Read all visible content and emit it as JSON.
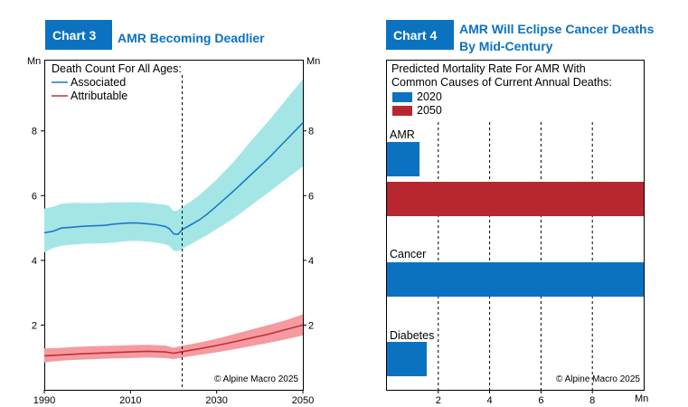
{
  "charts": [
    {
      "tag": "Chart 3",
      "title": "AMR Becoming Deadlier",
      "unit_left": "Mn",
      "unit_right": "Mn",
      "legend_title": "Death Count For All Ages:",
      "copyright": "© Alpine Macro 2025"
    },
    {
      "tag": "Chart 4",
      "title_line1": "AMR Will Eclipse Cancer Deaths",
      "title_line2": "By Mid-Century",
      "legend_title_line1": "Predicted Mortality Rate For AMR With",
      "legend_title_line2": "Common Causes of Current Annual Deaths:",
      "unit": "Mn",
      "copyright": "© Alpine Macro 2025"
    }
  ],
  "chart_data": [
    {
      "type": "line",
      "title": "AMR Becoming Deadlier",
      "xlabel": "",
      "ylabel": "Mn",
      "xlim": [
        1990,
        2050
      ],
      "ylim": [
        0,
        10.2
      ],
      "x_ticks": [
        1990,
        2010,
        2030,
        2050
      ],
      "y_ticks": [
        2,
        4,
        6,
        8
      ],
      "vline_x": 2022,
      "legend_position": "top-left",
      "colors": {
        "associated": "#1f77c8",
        "associated_band": "#a4e6e6",
        "attributable": "#c0303a",
        "attributable_band": "#f59aa0"
      },
      "series": [
        {
          "name": "Associated",
          "x": [
            1990,
            1992,
            1994,
            1996,
            1998,
            2000,
            2002,
            2004,
            2006,
            2008,
            2010,
            2012,
            2014,
            2016,
            2018,
            2019,
            2020,
            2021,
            2022,
            2024,
            2026,
            2028,
            2030,
            2034,
            2038,
            2042,
            2046,
            2050
          ],
          "values": [
            4.85,
            4.9,
            5.0,
            5.02,
            5.04,
            5.06,
            5.07,
            5.08,
            5.12,
            5.14,
            5.16,
            5.15,
            5.13,
            5.1,
            5.05,
            4.98,
            4.82,
            4.8,
            4.95,
            5.1,
            5.25,
            5.45,
            5.68,
            6.15,
            6.65,
            7.15,
            7.7,
            8.25
          ],
          "lower": [
            4.25,
            4.38,
            4.45,
            4.48,
            4.5,
            4.52,
            4.52,
            4.53,
            4.55,
            4.58,
            4.6,
            4.6,
            4.58,
            4.55,
            4.5,
            4.45,
            4.3,
            4.28,
            4.35,
            4.5,
            4.65,
            4.8,
            4.97,
            5.3,
            5.7,
            6.1,
            6.5,
            6.9
          ],
          "upper": [
            5.6,
            5.65,
            5.75,
            5.77,
            5.78,
            5.77,
            5.77,
            5.78,
            5.79,
            5.79,
            5.8,
            5.79,
            5.78,
            5.75,
            5.72,
            5.68,
            5.52,
            5.55,
            5.65,
            5.82,
            6.02,
            6.25,
            6.5,
            7.05,
            7.7,
            8.3,
            8.95,
            9.6
          ]
        },
        {
          "name": "Attributable",
          "x": [
            1990,
            1994,
            1998,
            2002,
            2006,
            2010,
            2014,
            2018,
            2020,
            2022,
            2026,
            2030,
            2034,
            2038,
            2042,
            2046,
            2050
          ],
          "values": [
            1.05,
            1.08,
            1.11,
            1.13,
            1.15,
            1.17,
            1.19,
            1.17,
            1.13,
            1.18,
            1.27,
            1.37,
            1.48,
            1.6,
            1.72,
            1.86,
            2.0
          ],
          "lower": [
            0.85,
            0.9,
            0.93,
            0.95,
            0.97,
            0.98,
            1.0,
            0.98,
            0.95,
            1.0,
            1.08,
            1.16,
            1.25,
            1.35,
            1.45,
            1.56,
            1.68
          ],
          "upper": [
            1.28,
            1.3,
            1.33,
            1.35,
            1.36,
            1.38,
            1.39,
            1.37,
            1.3,
            1.36,
            1.46,
            1.58,
            1.72,
            1.86,
            2.0,
            2.15,
            2.33
          ]
        }
      ]
    },
    {
      "type": "bar",
      "orientation": "horizontal",
      "title": "AMR Will Eclipse Cancer Deaths By Mid-Century",
      "xlabel": "Mn",
      "xlim": [
        0,
        10
      ],
      "x_ticks": [
        2,
        4,
        6,
        8
      ],
      "categories": [
        "AMR",
        "Cancer",
        "Diabetes"
      ],
      "legend_position": "top-left",
      "colors": {
        "2020": "#0b72c1",
        "2050": "#b8272f"
      },
      "series": [
        {
          "name": "2020",
          "values": [
            1.27,
            10.0,
            1.55
          ]
        },
        {
          "name": "2050",
          "values": [
            10.0,
            null,
            null
          ]
        }
      ]
    }
  ]
}
